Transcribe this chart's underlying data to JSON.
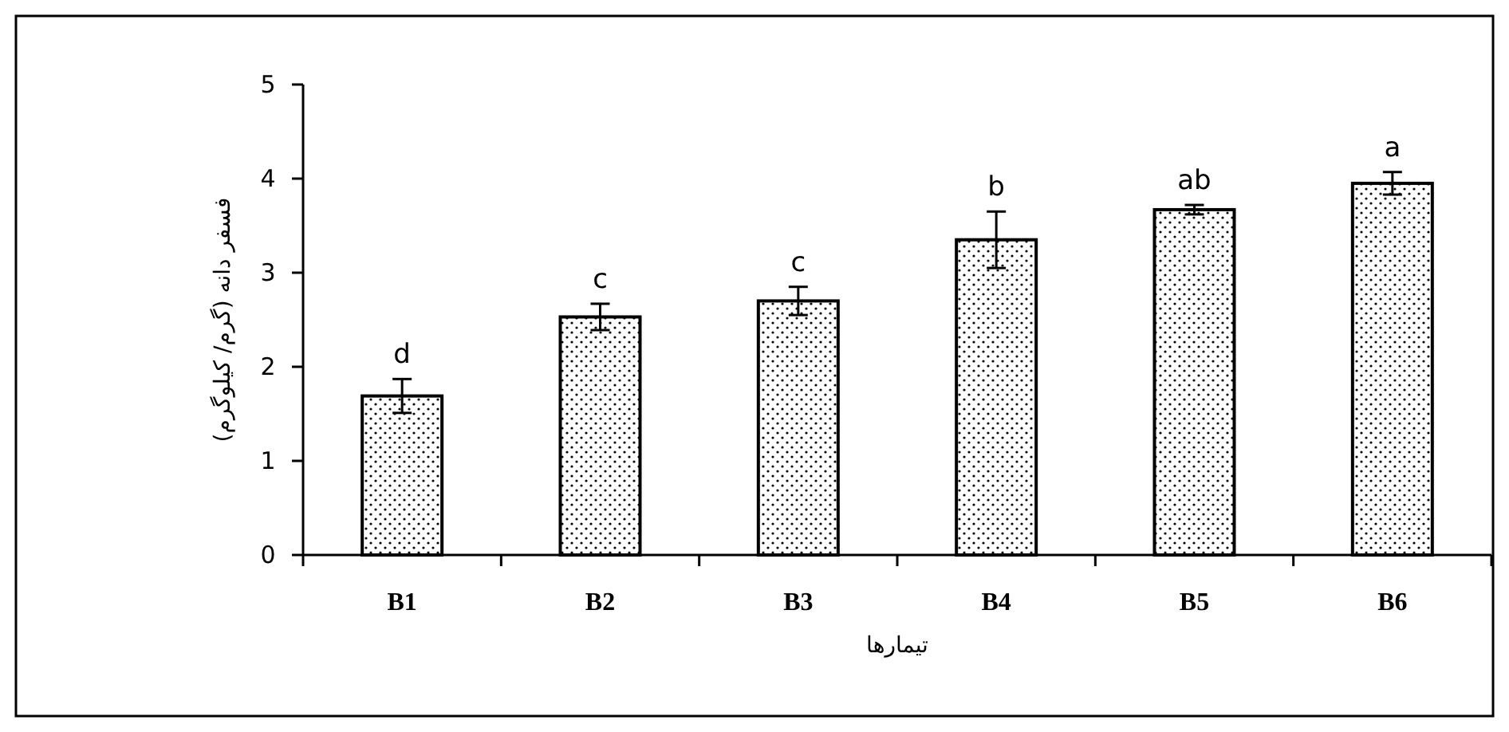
{
  "chart_data": {
    "type": "bar",
    "xlabel": "تیمارها",
    "ylabel": "فسفر دانه (گرم/ کیلوگرم)",
    "categories": [
      "B1",
      "B2",
      "B3",
      "B4",
      "B5",
      "B6"
    ],
    "values": [
      1.69,
      2.53,
      2.7,
      3.35,
      3.67,
      3.95
    ],
    "errors": [
      0.18,
      0.14,
      0.15,
      0.3,
      0.05,
      0.12
    ],
    "color": "#000000",
    "ylim": [
      0,
      5
    ],
    "yticks": [
      0,
      1,
      2,
      3,
      4,
      5
    ],
    "grid": false,
    "annotations": [
      {
        "text": "d",
        "x": "B1",
        "y": 1.87
      },
      {
        "text": "c",
        "x": "B2",
        "y": 2.67
      },
      {
        "text": "c",
        "x": "B3",
        "y": 2.85
      },
      {
        "text": "b",
        "x": "B4",
        "y": 3.65
      },
      {
        "text": "ab",
        "x": "B5",
        "y": 3.72
      },
      {
        "text": "a",
        "x": "B6",
        "y": 4.07
      }
    ]
  }
}
